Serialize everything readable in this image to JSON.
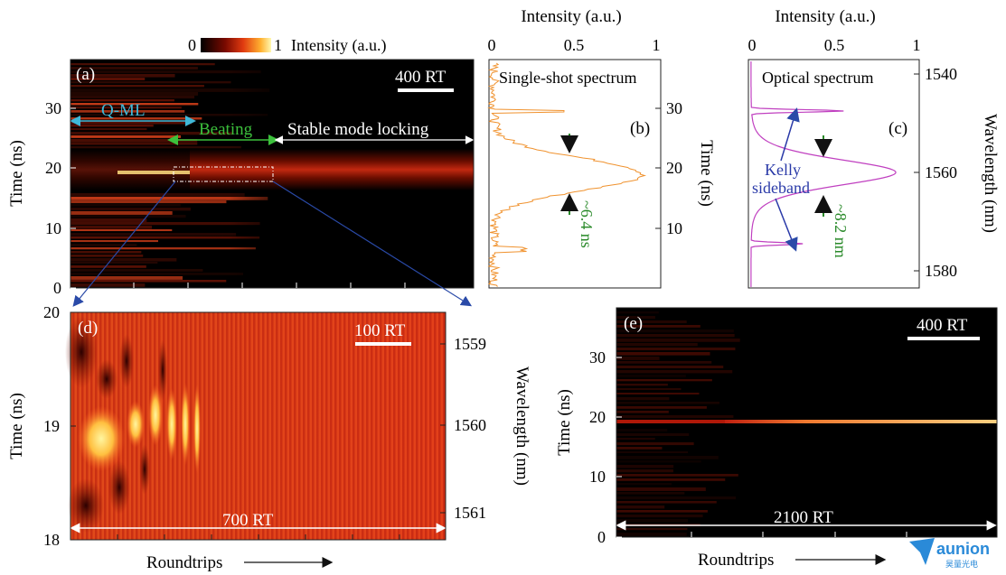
{
  "colorbar": {
    "min_label": "0",
    "max_label": "1",
    "label": "Intensity (a.u.)"
  },
  "panel_a": {
    "letter": "(a)",
    "scale_bar": "400 RT",
    "ylabel": "Time (ns)",
    "yticks": [
      "0",
      "10",
      "20",
      "30"
    ],
    "regions": {
      "qml": "Q-ML",
      "beating": "Beating",
      "stable": "Stable mode locking"
    },
    "colors": {
      "qml": "#3fb8d8",
      "beating": "#3cc03c",
      "stable": "#ffffff"
    }
  },
  "panel_b": {
    "letter": "(b)",
    "title": "Single-shot spectrum",
    "top_label": "Intensity (a.u.)",
    "top_ticks": [
      "0",
      "0.5",
      "1"
    ],
    "right_label": "Time (ns)",
    "right_ticks": [
      "10",
      "20",
      "30"
    ],
    "annotation": "~6.4 ns",
    "trace_color": "#f0922e"
  },
  "panel_c": {
    "letter": "(c)",
    "title": "Optical spectrum",
    "top_label": "Intensity (a.u.)",
    "top_ticks": [
      "0",
      "0.5",
      "1"
    ],
    "right_label": "Wavelength (nm)",
    "right_ticks": [
      "1540",
      "1560",
      "1580"
    ],
    "annotation": "~8.2 nm",
    "kelly_line1": "Kelly",
    "kelly_line2": "sideband",
    "trace_color": "#c040c0"
  },
  "panel_d": {
    "letter": "(d)",
    "scale_bar": "100 RT",
    "ylabel": "Time (ns)",
    "yticks": [
      "18",
      "19",
      "20"
    ],
    "right_label": "Wavelength (nm)",
    "right_ticks": [
      "1559",
      "1560",
      "1561"
    ],
    "span_label": "700 RT",
    "xlabel": "Roundtrips"
  },
  "panel_e": {
    "letter": "(e)",
    "scale_bar": "400 RT",
    "ylabel": "Time (ns)",
    "yticks": [
      "0",
      "10",
      "20",
      "30"
    ],
    "span_label": "2100 RT",
    "xlabel": "Roundtrips"
  },
  "logo": {
    "name": "aunion",
    "sub": "昊量光电",
    "color": "#2a8ad8"
  }
}
